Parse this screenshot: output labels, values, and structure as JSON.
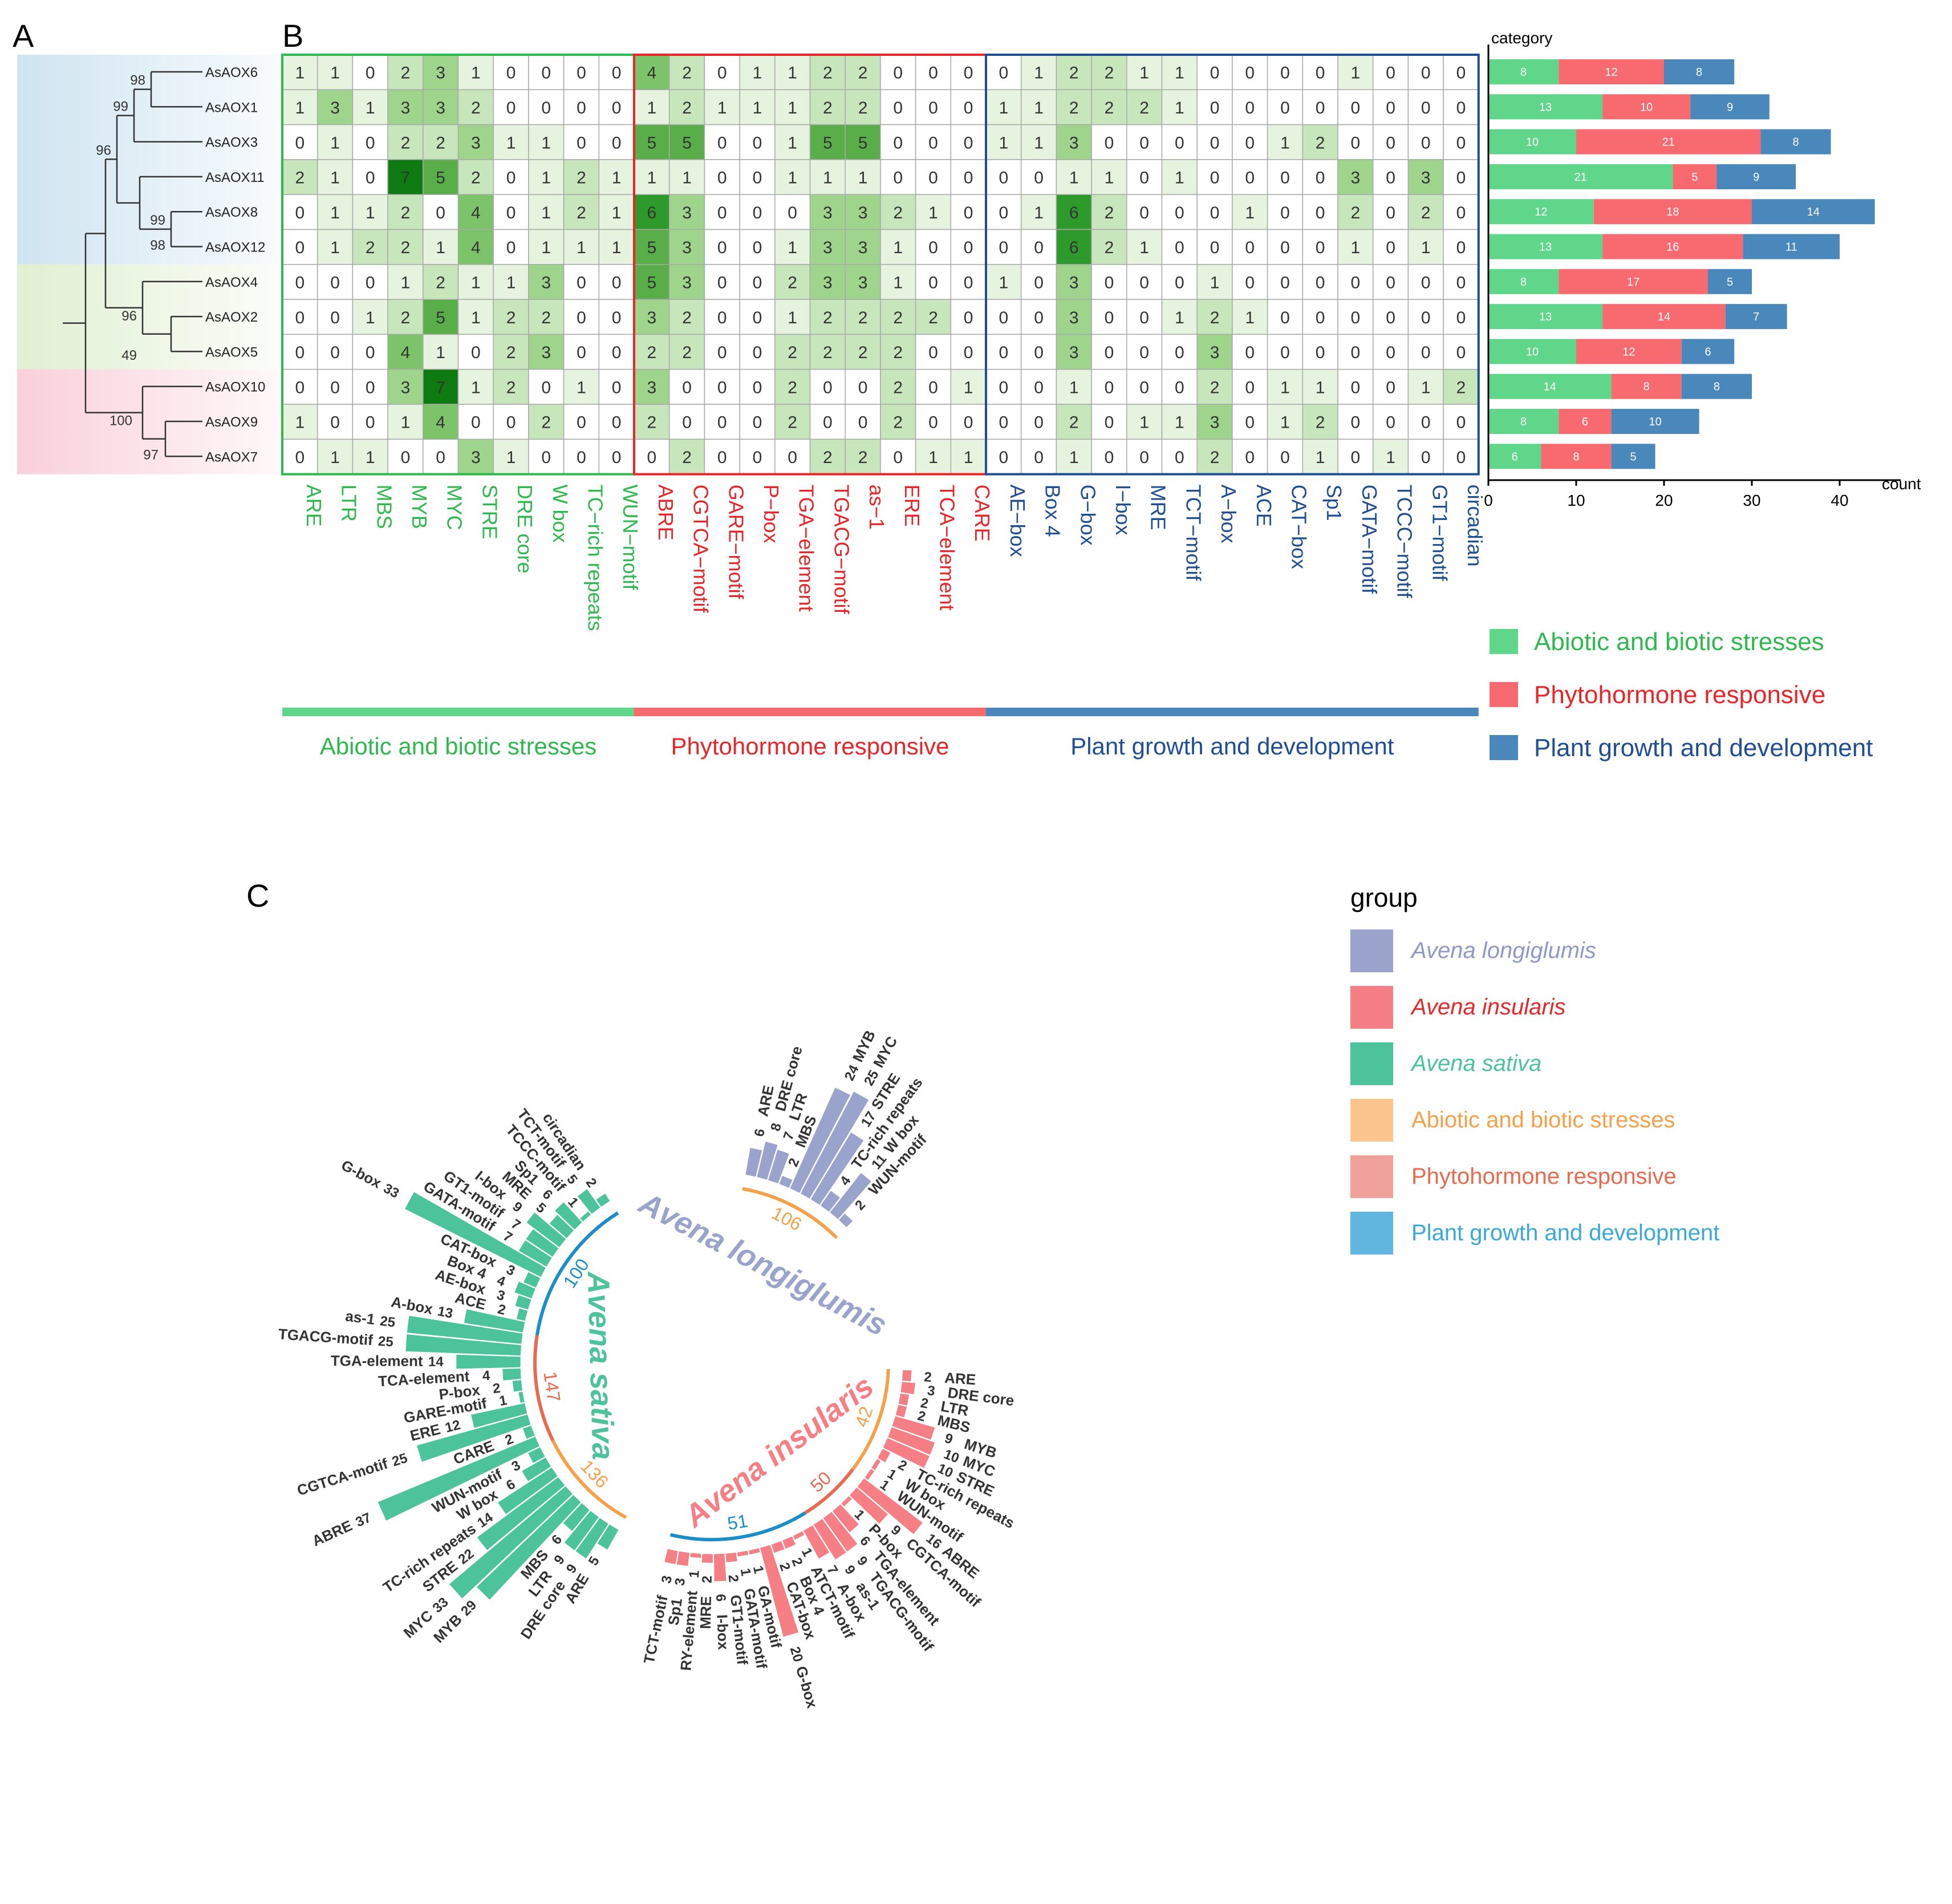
{
  "panel_labels": {
    "a": "A",
    "b": "B",
    "c": "C"
  },
  "colors": {
    "abiotic": "#2eb84e",
    "phyto": "#e8262a",
    "growth": "#1f4e93",
    "abiotic_bar": "#5fd68a",
    "phyto_bar": "#f76a6f",
    "growth_bar": "#4a88bb",
    "longiglumis": "#9aa3cb",
    "insularis": "#f57f84",
    "sativa": "#4cc39b",
    "ring_abiotic": "#f7a04a",
    "ring_phyto": "#e86a50",
    "ring_growth": "#1b8ec9"
  },
  "tree": {
    "genes": [
      "AsAOX6",
      "AsAOX1",
      "AsAOX3",
      "AsAOX11",
      "AsAOX8",
      "AsAOX12",
      "AsAOX4",
      "AsAOX2",
      "AsAOX5",
      "AsAOX10",
      "AsAOX9",
      "AsAOX7"
    ],
    "bootstrap": [
      "98",
      "99",
      "96",
      "99",
      "98",
      "96",
      "49",
      "100",
      "97"
    ]
  },
  "heatmap": {
    "rows": [
      "AsAOX6",
      "AsAOX1",
      "AsAOX3",
      "AsAOX11",
      "AsAOX8",
      "AsAOX12",
      "AsAOX4",
      "AsAOX2",
      "AsAOX5",
      "AsAOX10",
      "AsAOX9",
      "AsAOX7"
    ],
    "columns": [
      "ARE",
      "LTR",
      "MBS",
      "MYB",
      "MYC",
      "STRE",
      "DRE core",
      "W box",
      "TC−rich repeats",
      "WUN−motif",
      "ABRE",
      "CGTCA−motif",
      "GARE−motif",
      "P−box",
      "TGA−element",
      "TGACG−motif",
      "as−1",
      "ERE",
      "TCA−element",
      "CARE",
      "AE−box",
      "Box 4",
      "G−box",
      "I−box",
      "MRE",
      "TCT−motif",
      "A−box",
      "ACE",
      "CAT−box",
      "Sp1",
      "GATA−motif",
      "TCCC−motif",
      "GT1−motif",
      "circadian"
    ],
    "groups": [
      {
        "name": "Abiotic and biotic stresses",
        "count": 10
      },
      {
        "name": "Phytohormone responsive",
        "count": 10
      },
      {
        "name": "Plant growth and development",
        "count": 14
      }
    ],
    "values": [
      [
        1,
        1,
        0,
        2,
        3,
        1,
        0,
        0,
        0,
        0,
        4,
        2,
        0,
        1,
        1,
        2,
        2,
        0,
        0,
        0,
        0,
        1,
        2,
        2,
        1,
        1,
        0,
        0,
        0,
        0,
        1,
        0,
        0,
        0
      ],
      [
        1,
        3,
        1,
        3,
        3,
        2,
        0,
        0,
        0,
        0,
        1,
        2,
        1,
        1,
        1,
        2,
        2,
        0,
        0,
        0,
        1,
        1,
        2,
        2,
        2,
        1,
        0,
        0,
        0,
        0,
        0,
        0,
        0,
        0
      ],
      [
        0,
        1,
        0,
        2,
        2,
        3,
        1,
        1,
        0,
        0,
        5,
        5,
        0,
        0,
        1,
        5,
        5,
        0,
        0,
        0,
        1,
        1,
        3,
        0,
        0,
        0,
        0,
        0,
        1,
        2,
        0,
        0,
        0,
        0
      ],
      [
        2,
        1,
        0,
        7,
        5,
        2,
        0,
        1,
        2,
        1,
        1,
        1,
        0,
        0,
        1,
        1,
        1,
        0,
        0,
        0,
        0,
        0,
        1,
        1,
        0,
        1,
        0,
        0,
        0,
        0,
        3,
        0,
        3,
        0
      ],
      [
        0,
        1,
        1,
        2,
        0,
        4,
        0,
        1,
        2,
        1,
        6,
        3,
        0,
        0,
        0,
        3,
        3,
        2,
        1,
        0,
        0,
        1,
        6,
        2,
        0,
        0,
        0,
        1,
        0,
        0,
        2,
        0,
        2,
        0
      ],
      [
        0,
        1,
        2,
        2,
        1,
        4,
        0,
        1,
        1,
        1,
        5,
        3,
        0,
        0,
        1,
        3,
        3,
        1,
        0,
        0,
        0,
        0,
        6,
        2,
        1,
        0,
        0,
        0,
        0,
        0,
        1,
        0,
        1,
        0
      ],
      [
        0,
        0,
        0,
        1,
        2,
        1,
        1,
        3,
        0,
        0,
        5,
        3,
        0,
        0,
        2,
        3,
        3,
        1,
        0,
        0,
        1,
        0,
        3,
        0,
        0,
        0,
        1,
        0,
        0,
        0,
        0,
        0,
        0,
        0
      ],
      [
        0,
        0,
        1,
        2,
        5,
        1,
        2,
        2,
        0,
        0,
        3,
        2,
        0,
        0,
        1,
        2,
        2,
        2,
        2,
        0,
        0,
        0,
        3,
        0,
        0,
        1,
        2,
        1,
        0,
        0,
        0,
        0,
        0,
        0
      ],
      [
        0,
        0,
        0,
        4,
        1,
        0,
        2,
        3,
        0,
        0,
        2,
        2,
        0,
        0,
        2,
        2,
        2,
        2,
        0,
        0,
        0,
        0,
        3,
        0,
        0,
        0,
        3,
        0,
        0,
        0,
        0,
        0,
        0,
        0
      ],
      [
        0,
        0,
        0,
        3,
        7,
        1,
        2,
        0,
        1,
        0,
        3,
        0,
        0,
        0,
        2,
        0,
        0,
        2,
        0,
        1,
        0,
        0,
        1,
        0,
        0,
        0,
        2,
        0,
        1,
        1,
        0,
        0,
        1,
        2
      ],
      [
        1,
        0,
        0,
        1,
        4,
        0,
        0,
        2,
        0,
        0,
        2,
        0,
        0,
        0,
        2,
        0,
        0,
        2,
        0,
        0,
        0,
        0,
        2,
        0,
        1,
        1,
        3,
        0,
        1,
        2,
        0,
        0,
        0,
        0
      ],
      [
        0,
        1,
        1,
        0,
        0,
        3,
        1,
        0,
        0,
        0,
        0,
        2,
        0,
        0,
        0,
        2,
        2,
        0,
        1,
        1,
        0,
        0,
        1,
        0,
        0,
        0,
        2,
        0,
        0,
        1,
        0,
        1,
        0,
        0
      ]
    ],
    "group_labels": [
      "Abiotic and biotic stresses",
      "Phytohormone responsive",
      "Plant growth and development"
    ]
  },
  "chart_data": [
    {
      "type": "bar",
      "orientation": "horizontal",
      "stacked": true,
      "categories": [
        "AsAOX6",
        "AsAOX1",
        "AsAOX3",
        "AsAOX11",
        "AsAOX8",
        "AsAOX12",
        "AsAOX4",
        "AsAOX2",
        "AsAOX5",
        "AsAOX10",
        "AsAOX9",
        "AsAOX7"
      ],
      "series": [
        {
          "name": "Abiotic and biotic stresses",
          "values": [
            8,
            13,
            10,
            21,
            12,
            13,
            8,
            13,
            10,
            14,
            8,
            6
          ]
        },
        {
          "name": "Phytohormone responsive",
          "values": [
            12,
            10,
            21,
            5,
            18,
            16,
            17,
            14,
            12,
            8,
            6,
            8
          ]
        },
        {
          "name": "Plant growth and development",
          "values": [
            8,
            9,
            8,
            9,
            14,
            11,
            5,
            7,
            6,
            8,
            10,
            5
          ]
        }
      ],
      "ylabel": "category",
      "xlabel": "count",
      "xticks": [
        0,
        10,
        20,
        30,
        40
      ],
      "xlim": [
        0,
        45
      ],
      "legend": [
        "Abiotic and biotic stresses",
        "Phytohormone responsive",
        "Plant growth and development"
      ]
    },
    {
      "type": "bar",
      "layout": "circular",
      "legend_title": "group",
      "legend": [
        "Avena longiglumis",
        "Avena insularis",
        "Avena sativa",
        "Abiotic and biotic stresses",
        "Phytohormone responsive",
        "Plant growth and development"
      ],
      "groups": [
        {
          "name": "Avena longiglumis",
          "subgroup_totals": [
            {
              "category": "Abiotic and biotic stresses",
              "total": 106
            }
          ],
          "bars": [
            {
              "label": "ARE",
              "value": 6
            },
            {
              "label": "DRE core",
              "value": 8
            },
            {
              "label": "LTR",
              "value": 7
            },
            {
              "label": "MBS",
              "value": 2
            },
            {
              "label": "MYB",
              "value": 24
            },
            {
              "label": "MYC",
              "value": 25
            },
            {
              "label": "STRE",
              "value": 17
            },
            {
              "label": "TC-rich repeats",
              "value": 4
            },
            {
              "label": "W box",
              "value": 11
            },
            {
              "label": "WUN-motif",
              "value": 2
            }
          ]
        },
        {
          "name": "Avena insularis",
          "subgroup_totals": [
            {
              "category": "Abiotic and biotic stresses",
              "total": 42
            },
            {
              "category": "Phytohormone responsive",
              "total": 50
            },
            {
              "category": "Plant growth and development",
              "total": 51
            }
          ],
          "bars": [
            {
              "label": "ARE",
              "value": 2
            },
            {
              "label": "DRE core",
              "value": 3
            },
            {
              "label": "LTR",
              "value": 2
            },
            {
              "label": "MBS",
              "value": 2
            },
            {
              "label": "MYB",
              "value": 9
            },
            {
              "label": "MYC",
              "value": 10
            },
            {
              "label": "STRE",
              "value": 10
            },
            {
              "label": "TC-rich repeats",
              "value": 2
            },
            {
              "label": "W box",
              "value": 1
            },
            {
              "label": "WUN-motif",
              "value": 1
            },
            {
              "label": "ABRE",
              "value": 16
            },
            {
              "label": "CGTCA-motif",
              "value": 9
            },
            {
              "label": "P-box",
              "value": 1
            },
            {
              "label": "TGA-element",
              "value": 6
            },
            {
              "label": "TGACG-motif",
              "value": 9
            },
            {
              "label": "as-1",
              "value": 9
            },
            {
              "label": "A-box",
              "value": 7
            },
            {
              "label": "ATCT-motif",
              "value": 1
            },
            {
              "label": "Box 4",
              "value": 2
            },
            {
              "label": "CAT-box",
              "value": 2
            },
            {
              "label": "G-box",
              "value": 20
            },
            {
              "label": "GA-motif",
              "value": 1
            },
            {
              "label": "GATA-motif",
              "value": 1
            },
            {
              "label": "GT1-motif",
              "value": 2
            },
            {
              "label": "I-box",
              "value": 6
            },
            {
              "label": "MRE",
              "value": 2
            },
            {
              "label": "RY-element",
              "value": 1
            },
            {
              "label": "Sp1",
              "value": 3
            },
            {
              "label": "TCT-motif",
              "value": 3
            }
          ]
        },
        {
          "name": "Avena sativa",
          "subgroup_totals": [
            {
              "category": "Abiotic and biotic stresses",
              "total": 136
            },
            {
              "category": "Phytohormone responsive",
              "total": 147
            },
            {
              "category": "Plant growth and development",
              "total": 100
            }
          ],
          "bars": [
            {
              "label": "ARE",
              "value": 5
            },
            {
              "label": "DRE core",
              "value": 9
            },
            {
              "label": "LTR",
              "value": 9
            },
            {
              "label": "MBS",
              "value": 6
            },
            {
              "label": "MYB",
              "value": 29
            },
            {
              "label": "MYC",
              "value": 33
            },
            {
              "label": "STRE",
              "value": 22
            },
            {
              "label": "TC-rich repeats",
              "value": 14
            },
            {
              "label": "W box",
              "value": 6
            },
            {
              "label": "WUN-motif",
              "value": 3
            },
            {
              "label": "ABRE",
              "value": 37
            },
            {
              "label": "CARE",
              "value": 2
            },
            {
              "label": "CGTCA-motif",
              "value": 25
            },
            {
              "label": "ERE",
              "value": 12
            },
            {
              "label": "GARE-motif",
              "value": 1
            },
            {
              "label": "P-box",
              "value": 2
            },
            {
              "label": "TCA-element",
              "value": 4
            },
            {
              "label": "TGA-element",
              "value": 14
            },
            {
              "label": "TGACG-motif",
              "value": 25
            },
            {
              "label": "as-1",
              "value": 25
            },
            {
              "label": "A-box",
              "value": 13
            },
            {
              "label": "ACE",
              "value": 2
            },
            {
              "label": "AE-box",
              "value": 3
            },
            {
              "label": "Box 4",
              "value": 4
            },
            {
              "label": "CAT-box",
              "value": 3
            },
            {
              "label": "G-box",
              "value": 33
            },
            {
              "label": "GATA-motif",
              "value": 7
            },
            {
              "label": "GT1-motif",
              "value": 7
            },
            {
              "label": "I-box",
              "value": 9
            },
            {
              "label": "MRE",
              "value": 5
            },
            {
              "label": "Sp1",
              "value": 6
            },
            {
              "label": "TCCC-motif",
              "value": 1
            },
            {
              "label": "TCT-motif",
              "value": 5
            },
            {
              "label": "circadian",
              "value": 2
            }
          ]
        }
      ]
    }
  ]
}
